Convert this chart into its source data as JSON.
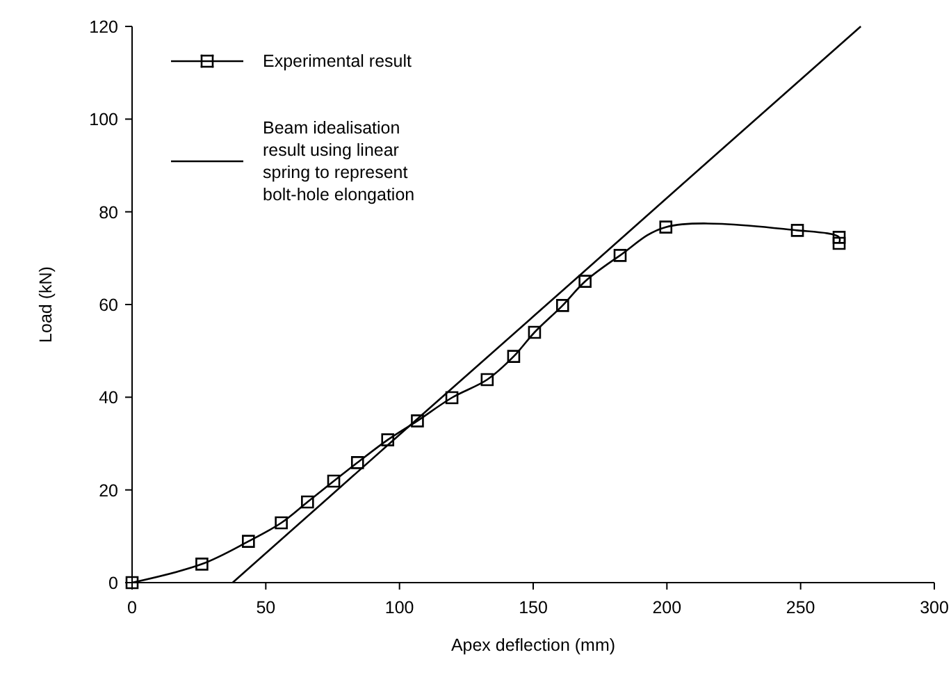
{
  "chart_data": {
    "type": "line",
    "xlabel": "Apex deflection (mm)",
    "ylabel": "Load (kN)",
    "xlim": [
      0,
      300
    ],
    "ylim": [
      0,
      120
    ],
    "xticks": [
      0,
      50,
      100,
      150,
      200,
      250,
      300
    ],
    "yticks": [
      0,
      20,
      40,
      60,
      80,
      100,
      120
    ],
    "grid": false,
    "legend": "top left",
    "series": [
      {
        "name": "Experimental result",
        "color": "#000000",
        "marker": "square",
        "x": [
          0,
          26.1,
          43.5,
          55.8,
          65.6,
          75.4,
          84.3,
          95.6,
          106.7,
          119.6,
          132.8,
          142.7,
          150.5,
          161,
          169.4,
          182.5,
          199.6,
          248.8,
          264.4,
          264.4
        ],
        "values": [
          0,
          4,
          8.9,
          12.9,
          17.4,
          21.9,
          25.9,
          30.8,
          34.9,
          39.9,
          43.8,
          48.8,
          54,
          59.8,
          65,
          70.6,
          76.7,
          76,
          74.5,
          73.2
        ]
      },
      {
        "name": "Beam idealisation result using linear spring to represent bolt-hole elongation",
        "color": "#000000",
        "marker": "none",
        "x": [
          37.6,
          100,
          150,
          200,
          272.5
        ],
        "values": [
          0,
          31.9,
          57.4,
          83,
          120
        ]
      }
    ]
  }
}
